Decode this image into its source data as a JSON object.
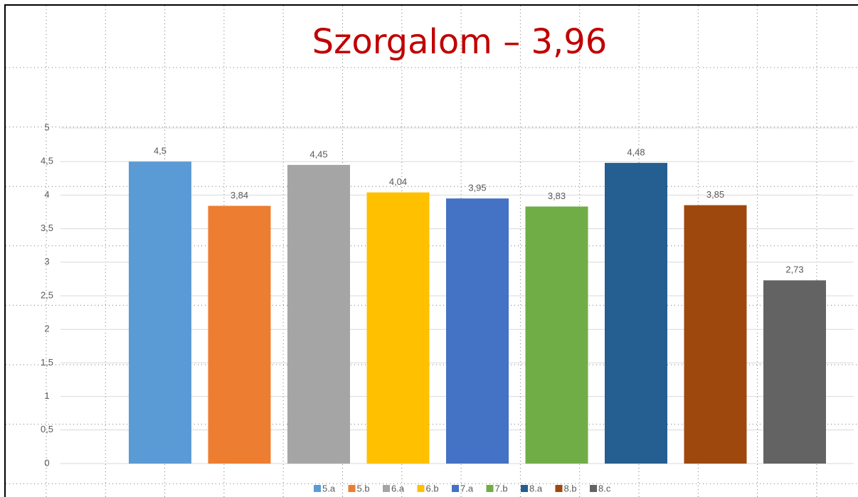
{
  "chart_data": {
    "type": "bar",
    "title": "Szorgalom – 3,96",
    "categories": [
      null
    ],
    "series": [
      {
        "name": "5.a",
        "color": "#5b9bd5",
        "values": [
          4.5
        ],
        "value_labels": [
          "4,5"
        ]
      },
      {
        "name": "5.b",
        "color": "#ed7d31",
        "values": [
          3.84
        ],
        "value_labels": [
          "3,84"
        ]
      },
      {
        "name": "6.a",
        "color": "#a5a5a5",
        "values": [
          4.45
        ],
        "value_labels": [
          "4,45"
        ]
      },
      {
        "name": "6.b",
        "color": "#ffc000",
        "values": [
          4.04
        ],
        "value_labels": [
          "4,04"
        ]
      },
      {
        "name": "7.a",
        "color": "#4472c4",
        "values": [
          3.95
        ],
        "value_labels": [
          "3,95"
        ]
      },
      {
        "name": "7.b",
        "color": "#70ad47",
        "values": [
          3.83
        ],
        "value_labels": [
          "3,83"
        ]
      },
      {
        "name": "8.a",
        "color": "#255e91",
        "values": [
          4.48
        ],
        "value_labels": [
          "4,48"
        ]
      },
      {
        "name": "8.b",
        "color": "#9e480e",
        "values": [
          3.85
        ],
        "value_labels": [
          "3,85"
        ]
      },
      {
        "name": "8.c",
        "color": "#636363",
        "values": [
          2.73
        ],
        "value_labels": [
          "2,73"
        ]
      }
    ],
    "ylim": [
      0,
      5
    ],
    "yticks": [
      0,
      {
        "value": 0.5,
        "label": "0,5"
      },
      1,
      {
        "value": 1.5,
        "label": "1,5"
      },
      2,
      {
        "value": 2.5,
        "label": "2,5"
      },
      3,
      {
        "value": 3.5,
        "label": "3,5"
      },
      4,
      {
        "value": 4.5,
        "label": "4,5"
      },
      5
    ],
    "grid": true,
    "legend": "bottom"
  }
}
